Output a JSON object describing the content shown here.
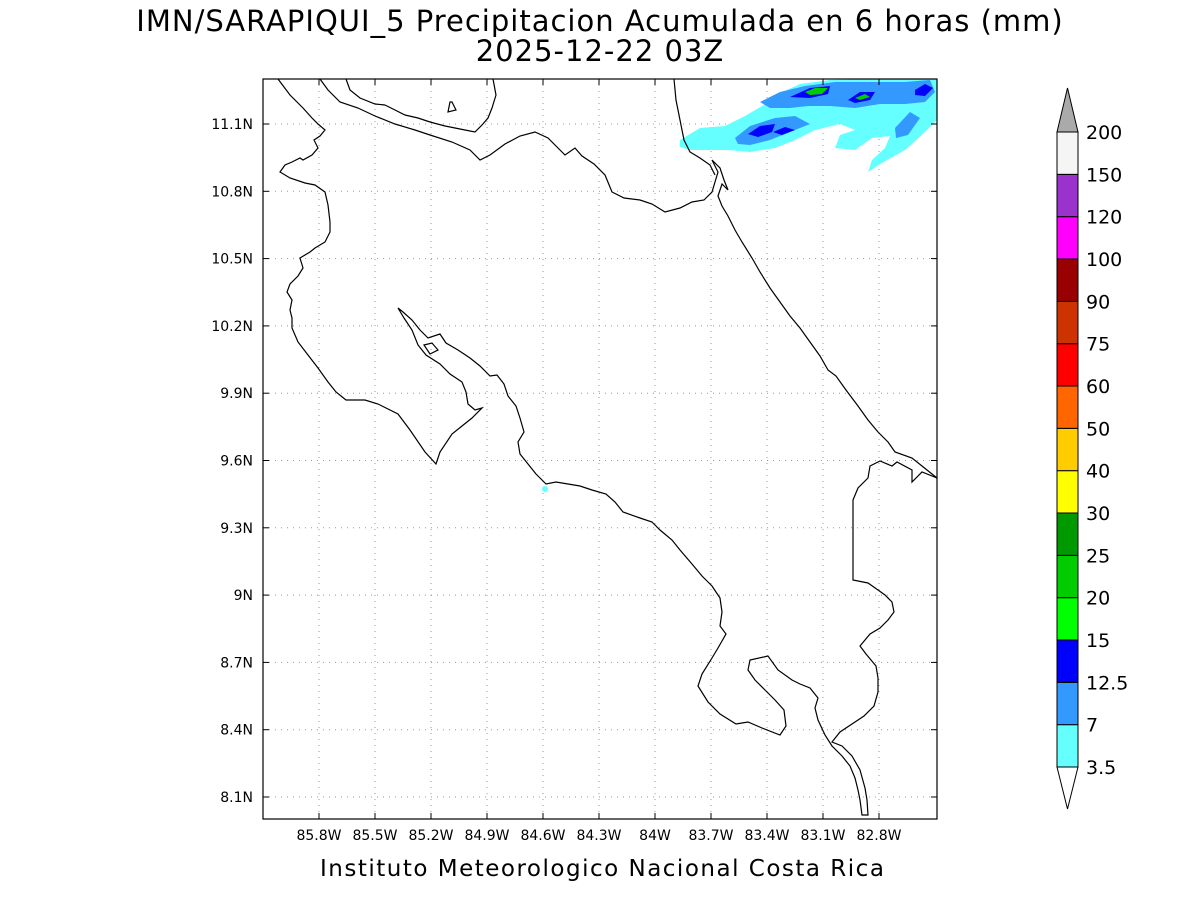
{
  "title": {
    "line1": "IMN/SARAPIQUI_5 Precipitacion Acumulada en 6 horas (mm)",
    "line2": "2025-12-22 03Z"
  },
  "footer": "Instituto Meteorologico Nacional Costa Rica",
  "map": {
    "lon_range": [
      -86.0,
      -82.5
    ],
    "lat_range": [
      8.0,
      11.3
    ],
    "lon_ticks": [
      "85.8W",
      "85.5W",
      "85.2W",
      "84.9W",
      "84.6W",
      "84.3W",
      "84W",
      "83.7W",
      "83.4W",
      "83.1W",
      "82.8W"
    ],
    "lat_ticks": [
      "11.1N",
      "10.8N",
      "10.5N",
      "10.2N",
      "9.9N",
      "9.6N",
      "9.3N",
      "9N",
      "8.7N",
      "8.4N",
      "8.1N"
    ],
    "grid": "dotted"
  },
  "colorbar": {
    "labels": [
      "3.5",
      "7",
      "12.5",
      "15",
      "20",
      "25",
      "30",
      "40",
      "50",
      "60",
      "75",
      "90",
      "100",
      "120",
      "150",
      "200"
    ],
    "colors": [
      "#66ffff",
      "#3399ff",
      "#0000ff",
      "#00ff00",
      "#00cc00",
      "#009900",
      "#ffff00",
      "#ffcc00",
      "#ff6600",
      "#ff0000",
      "#cc3300",
      "#990000",
      "#ff00ff",
      "#9933cc",
      "#f5f5f5"
    ],
    "top_arrow_color": "#aaaaaa",
    "bottom_arrow_color": "#ffffff"
  }
}
